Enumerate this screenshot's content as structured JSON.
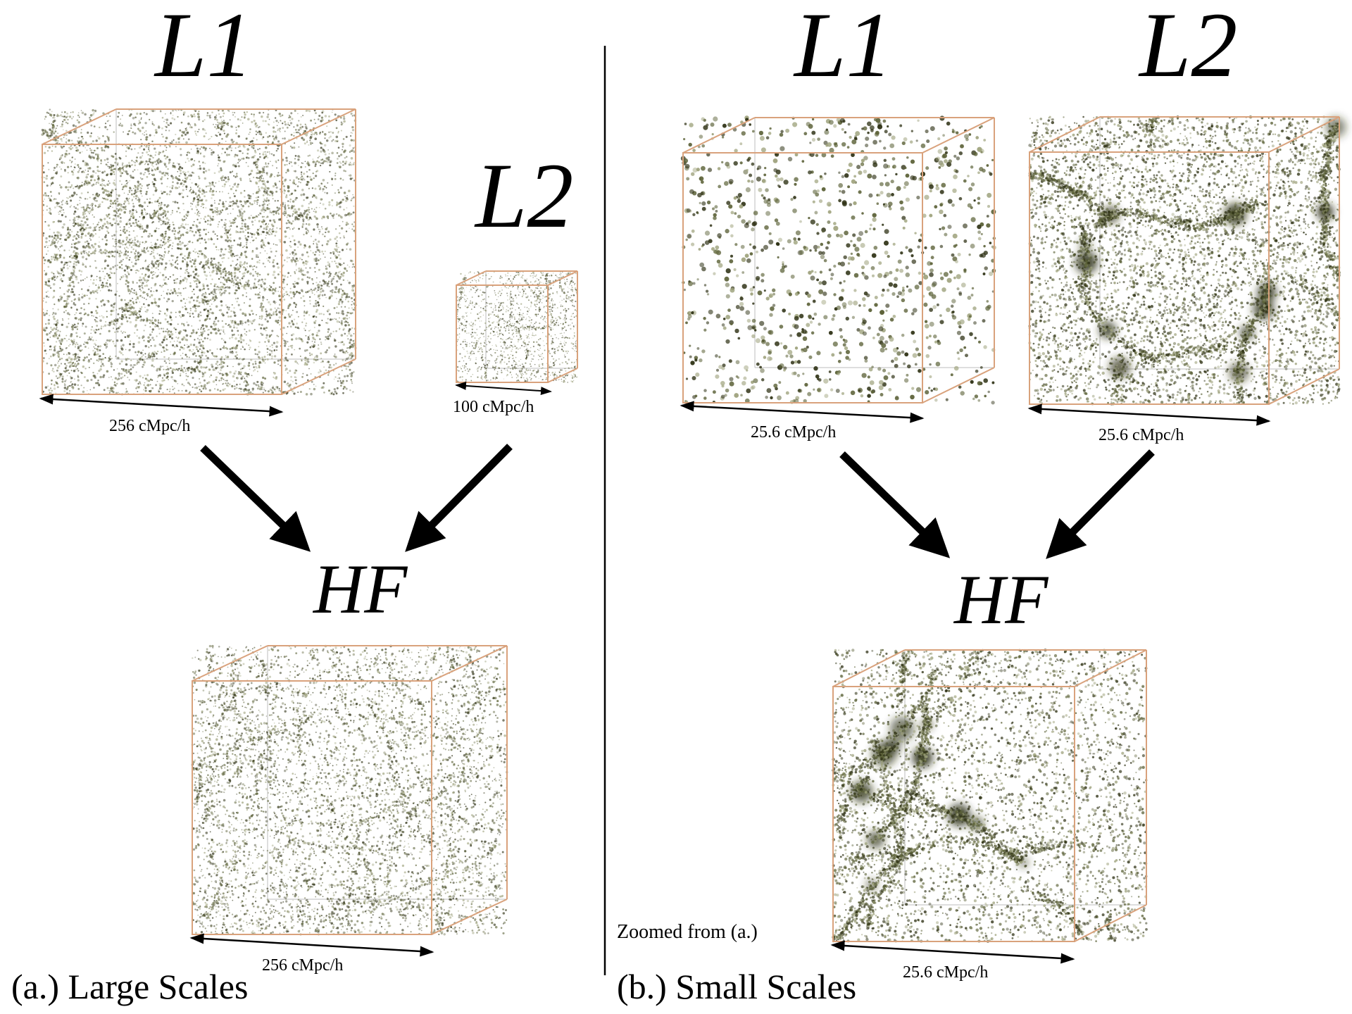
{
  "colors": {
    "particle_dark": "#2e3114",
    "particle_mid": "#5c6238",
    "particle_light": "#9ea27c",
    "box_edge": "#d9a27c",
    "box_hidden_edge": "#bdbdbd",
    "arrow": "#000000",
    "divider": "#000000"
  },
  "panel_a": {
    "caption": "(a.) Large Scales",
    "l1": {
      "label": "L1",
      "dimension": "256 cMpc/h"
    },
    "l2": {
      "label": "L2",
      "dimension": "100 cMpc/h"
    },
    "hf": {
      "label": "HF",
      "dimension": "256 cMpc/h"
    }
  },
  "panel_b": {
    "caption": "(b.) Small Scales",
    "note": "Zoomed from (a.)",
    "l1": {
      "label": "L1",
      "dimension": "25.6 cMpc/h"
    },
    "l2": {
      "label": "L2",
      "dimension": "25.6 cMpc/h"
    },
    "hf": {
      "label": "HF",
      "dimension": "25.6 cMpc/h"
    }
  }
}
